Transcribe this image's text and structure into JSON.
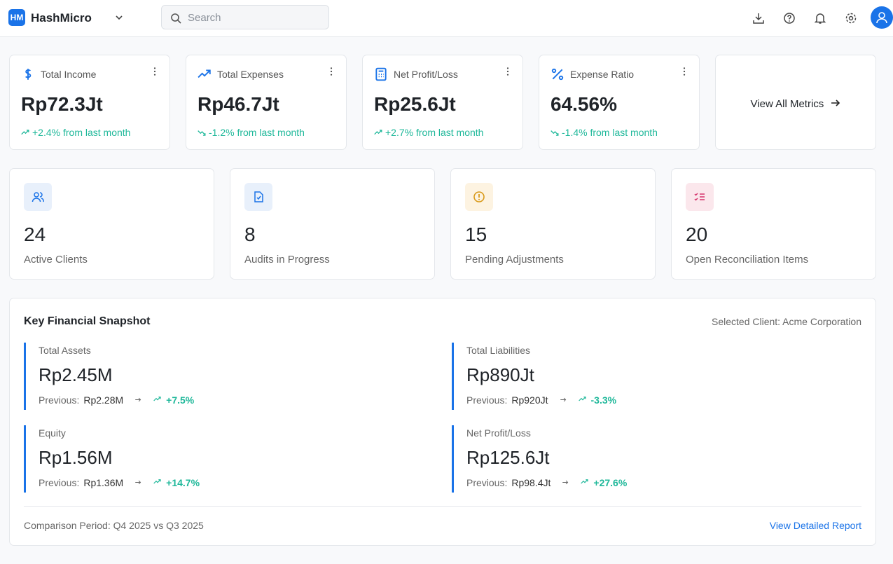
{
  "header": {
    "logo": "HM",
    "brand": "HashMicro",
    "search_placeholder": "Search"
  },
  "metrics": [
    {
      "label": "Total Income",
      "value": "Rp72.3Jt",
      "change": "+2.4% from last month"
    },
    {
      "label": "Total Expenses",
      "value": "Rp46.7Jt",
      "change": "-1.2% from last month"
    },
    {
      "label": "Net Profit/Loss",
      "value": "Rp25.6Jt",
      "change": "+2.7% from last month"
    },
    {
      "label": "Expense Ratio",
      "value": "64.56%",
      "change": "-1.4% from last month"
    }
  ],
  "view_all": "View All Metrics",
  "stats": [
    {
      "value": 24,
      "label": "Active Clients"
    },
    {
      "value": 8,
      "label": "Audits in Progress"
    },
    {
      "value": 15,
      "label": "Pending Adjustments"
    },
    {
      "value": 20,
      "label": "Open Reconciliation Items"
    }
  ],
  "snapshot": {
    "title": "Key Financial Snapshot",
    "selected_client": "Selected Client: Acme Corporation",
    "items": [
      {
        "label": "Total Assets",
        "value": "Rp2.45M",
        "previous_label": "Previous:",
        "previous": "Rp2.28M",
        "change": "+7.5%"
      },
      {
        "label": "Total Liabilities",
        "value": "Rp890Jt",
        "previous_label": "Previous:",
        "previous": "Rp920Jt",
        "change": "-3.3%"
      },
      {
        "label": "Equity",
        "value": "Rp1.56M",
        "previous_label": "Previous:",
        "previous": "Rp1.36M",
        "change": "+14.7%"
      },
      {
        "label": "Net Profit/Loss",
        "value": "Rp125.6Jt",
        "previous_label": "Previous:",
        "previous": "Rp98.4Jt",
        "change": "+27.6%"
      }
    ],
    "footer": "Comparison Period: Q4 2025 vs Q3 2025",
    "report_link": "View Detailed Report"
  }
}
